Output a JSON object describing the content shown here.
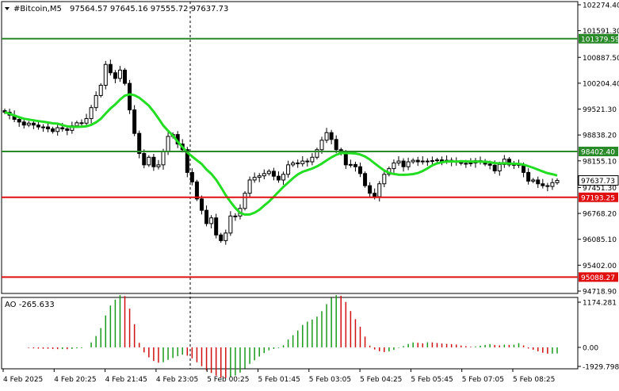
{
  "header": {
    "symbol": "#Bitcoin,M5",
    "ohlc": "97564.57 97645.16 97555.72 97637.73"
  },
  "price_axis": {
    "ticks": [
      "102274.40",
      "101591.30",
      "100887.50",
      "100204.40",
      "99521.30",
      "98838.20",
      "98155.10",
      "97451.30",
      "96768.20",
      "96085.10",
      "95402.00",
      "94718.90"
    ]
  },
  "levels": [
    {
      "label": "101379.59",
      "value": 101379.59,
      "color": "#2a8a2a"
    },
    {
      "label": "98402.40",
      "value": 98402.4,
      "color": "#2a8a2a"
    },
    {
      "label": "97193.25",
      "value": 97193.25,
      "color": "#e01010"
    },
    {
      "label": "95088.27",
      "value": 95088.27,
      "color": "#e01010"
    }
  ],
  "current_price": {
    "label": "97637.73",
    "value": 97637.73
  },
  "indicator": {
    "title": "AO -265.633",
    "ticks": [
      "1174.281",
      "0.00",
      "-1929.798"
    ]
  },
  "time_axis": {
    "labels": [
      "4 Feb 2025",
      "4 Feb 20:25",
      "4 Feb 21:45",
      "4 Feb 23:05",
      "5 Feb 00:25",
      "5 Feb 01:45",
      "5 Feb 03:05",
      "5 Feb 04:25",
      "5 Feb 05:45",
      "5 Feb 07:05",
      "5 Feb 08:25"
    ]
  },
  "colors": {
    "candle": "#000000",
    "ma": "#22dd22",
    "ao_up": "#1a9a1a",
    "ao_down": "#d01010",
    "grid": "#000000"
  },
  "chart_data": {
    "type": "candlestick",
    "title": "#Bitcoin,M5",
    "ylim": [
      94718.9,
      102274.4
    ],
    "close": [
      99440,
      99360,
      99250,
      99180,
      99100,
      99150,
      99100,
      99050,
      99050,
      99000,
      98930,
      99030,
      99000,
      98960,
      99080,
      99160,
      99150,
      99270,
      99560,
      99880,
      100150,
      100700,
      100480,
      100330,
      100550,
      100200,
      99500,
      98880,
      98350,
      98050,
      98250,
      98000,
      98050,
      98400,
      98800,
      98850,
      98600,
      98450,
      97850,
      97600,
      97150,
      96850,
      96500,
      96650,
      96200,
      96050,
      96250,
      96700,
      96700,
      96900,
      97300,
      97650,
      97720,
      97760,
      97820,
      97880,
      97750,
      97650,
      97800,
      98050,
      98100,
      98080,
      98150,
      98130,
      98250,
      98450,
      98700,
      98900,
      98720,
      98450,
      98350,
      98050,
      98060,
      98000,
      97820,
      97500,
      97300,
      97210,
      97550,
      97800,
      97950,
      98100,
      98150,
      98000,
      98130,
      98170,
      98130,
      98150,
      98150,
      98160,
      98180,
      98150,
      98170,
      98140,
      98120,
      98090,
      98080,
      98100,
      98160,
      98150,
      98070,
      98040,
      97890,
      98060,
      98200,
      98050,
      98060,
      98040,
      97850,
      97620,
      97650,
      97550,
      97500,
      97480,
      97580,
      97637.73
    ]
  }
}
